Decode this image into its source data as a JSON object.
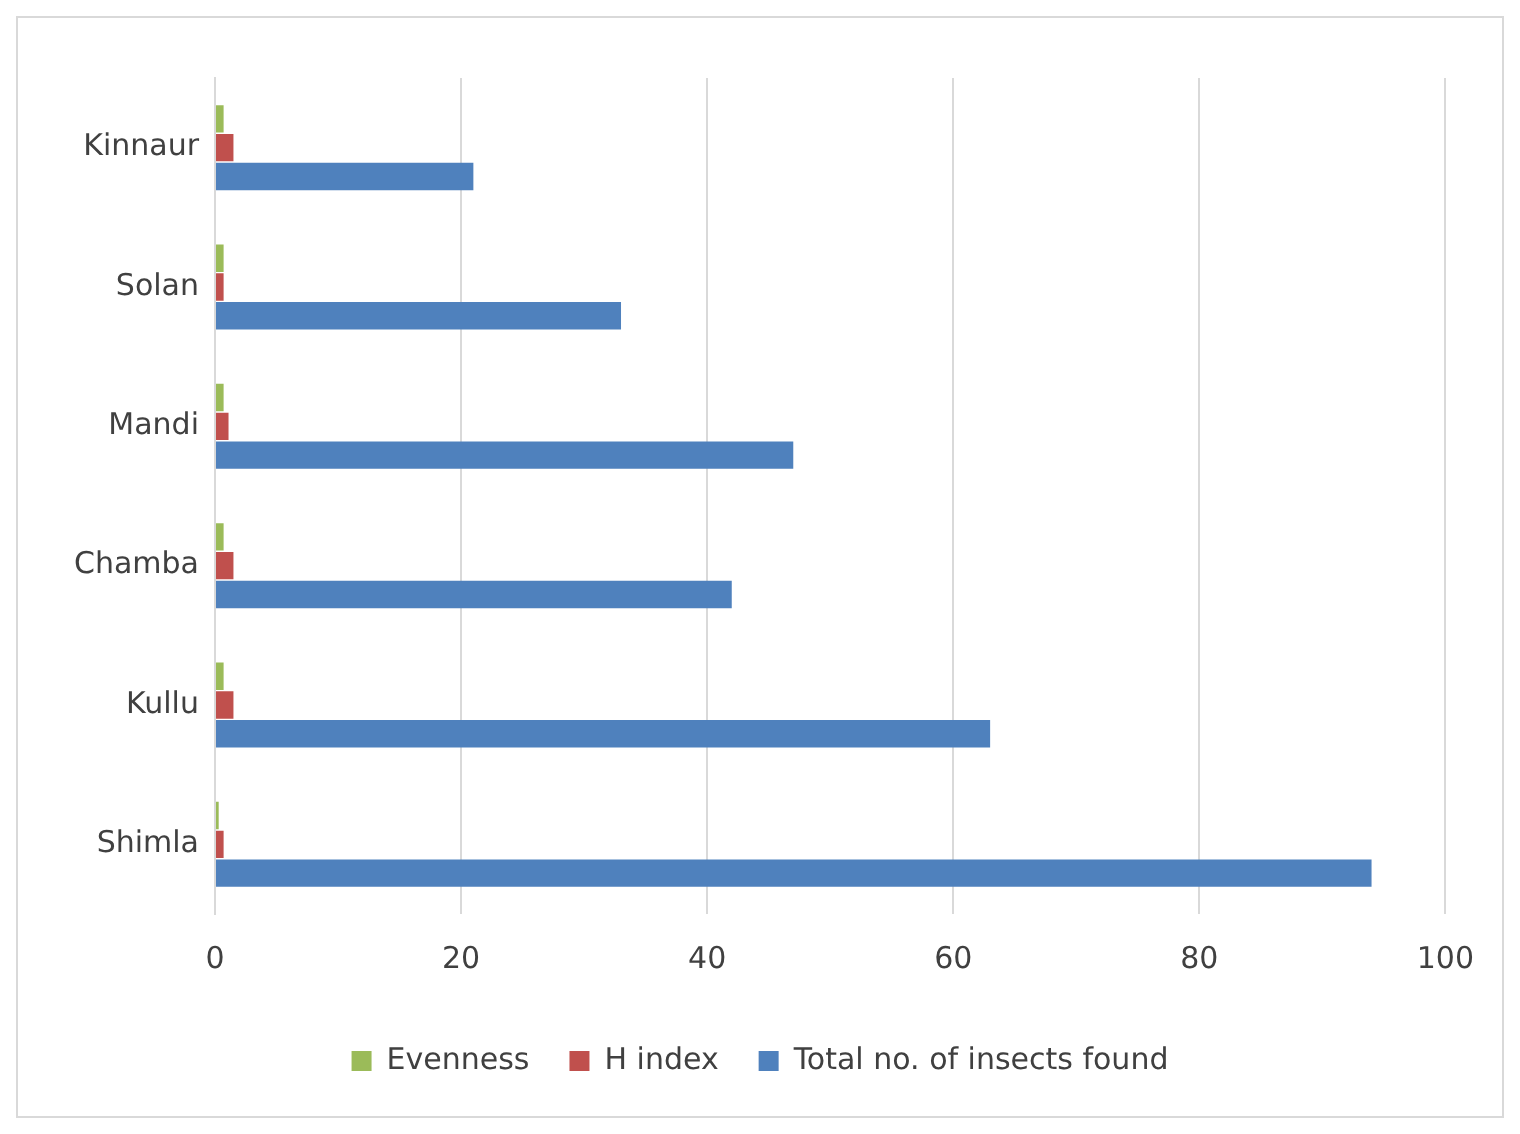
{
  "chart_data": {
    "type": "bar",
    "orientation": "horizontal",
    "categories": [
      "Kinnaur",
      "Solan",
      "Mandi",
      "Chamba",
      "Kullu",
      "Shimla"
    ],
    "series": [
      {
        "name": "Evenness",
        "color": "#9bbb59",
        "values": [
          0.7,
          0.7,
          0.7,
          0.7,
          0.7,
          0.3
        ]
      },
      {
        "name": "H index",
        "color": "#c0504d",
        "values": [
          1.5,
          0.7,
          1.1,
          1.5,
          1.5,
          0.7
        ]
      },
      {
        "name": "Total no. of insects found",
        "color": "#4f81bd",
        "values": [
          21,
          33,
          47,
          42,
          63,
          94
        ]
      }
    ],
    "xlim": [
      0,
      100
    ],
    "xticks": [
      0,
      20,
      40,
      60,
      80,
      100
    ],
    "grid": "x",
    "legend": "bottom"
  }
}
